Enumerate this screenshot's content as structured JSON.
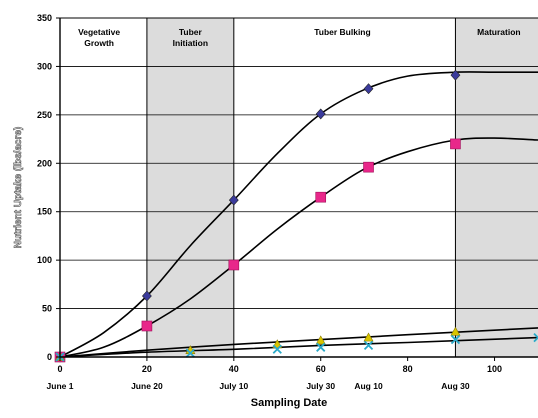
{
  "chart_data": {
    "type": "scatter",
    "title": "",
    "xlabel": "Sampling Date",
    "ylabel": "Nutrient Uptake (lbs/acre)",
    "xlim": [
      0,
      110
    ],
    "ylim": [
      0,
      350
    ],
    "y_ticks": [
      "0",
      "50",
      "100",
      "150",
      "200",
      "250",
      "300",
      "350"
    ],
    "x_ticks": [
      {
        "value": 0,
        "label": "0"
      },
      {
        "value": 20,
        "label": "20"
      },
      {
        "value": 40,
        "label": "40"
      },
      {
        "value": 60,
        "label": "60"
      },
      {
        "value": 80,
        "label": "80"
      },
      {
        "value": 100,
        "label": "100"
      }
    ],
    "date_labels": [
      {
        "value": 0,
        "label": "June 1"
      },
      {
        "value": 20,
        "label": "June 20"
      },
      {
        "value": 40,
        "label": "July 10"
      },
      {
        "value": 60,
        "label": "July 30"
      },
      {
        "value": 71,
        "label": "Aug 10"
      },
      {
        "value": 91,
        "label": "Aug 30"
      }
    ],
    "grid": "horizontal",
    "phases": [
      {
        "label_lines": [
          "Vegetative",
          "Growth"
        ],
        "start": 0,
        "end": 20,
        "shaded": false,
        "label_x": 9
      },
      {
        "label_lines": [
          "Tuber",
          "Initiation"
        ],
        "start": 20,
        "end": 40,
        "shaded": true,
        "label_x": 30
      },
      {
        "label_lines": [
          "Tuber Bulking"
        ],
        "start": 40,
        "end": 91,
        "shaded": false,
        "label_x": 65
      },
      {
        "label_lines": [
          "Maturation"
        ],
        "start": 91,
        "end": 110,
        "shaded": true,
        "label_x": 101
      }
    ],
    "series": [
      {
        "marker": "diamond",
        "color": "#3b3b9c",
        "x": [
          0,
          20,
          40,
          60,
          71,
          91
        ],
        "y": [
          0,
          63,
          162,
          251,
          277,
          291
        ],
        "fit_x": [
          0,
          10,
          20,
          30,
          40,
          50,
          60,
          70,
          80,
          91,
          100,
          110
        ],
        "fit_y": [
          0,
          25,
          63,
          115,
          162,
          210,
          251,
          276,
          290,
          294,
          294,
          294
        ]
      },
      {
        "marker": "square",
        "color": "#e8278a",
        "x": [
          0,
          20,
          40,
          60,
          71,
          91
        ],
        "y": [
          0,
          32,
          95,
          165,
          196,
          220
        ],
        "fit_x": [
          0,
          10,
          20,
          30,
          40,
          50,
          60,
          70,
          80,
          91,
          100,
          110
        ],
        "fit_y": [
          0,
          10,
          32,
          60,
          95,
          132,
          165,
          194,
          212,
          224,
          226,
          224
        ]
      },
      {
        "marker": "triangle",
        "color": "#d9c400",
        "x": [
          0,
          30,
          50,
          60,
          71,
          91
        ],
        "y": [
          0,
          7,
          13,
          17,
          20,
          26
        ],
        "fit_x": [
          0,
          20,
          40,
          60,
          80,
          110
        ],
        "fit_y": [
          0,
          7,
          13,
          18,
          23,
          30
        ]
      },
      {
        "marker": "x",
        "color": "#2aa9c9",
        "x": [
          0,
          30,
          50,
          60,
          71,
          91,
          110
        ],
        "y": [
          0,
          4,
          8,
          10,
          12,
          18,
          20
        ],
        "fit_x": [
          0,
          20,
          40,
          60,
          80,
          110
        ],
        "fit_y": [
          0,
          5,
          8,
          12,
          15,
          20
        ]
      }
    ]
  }
}
